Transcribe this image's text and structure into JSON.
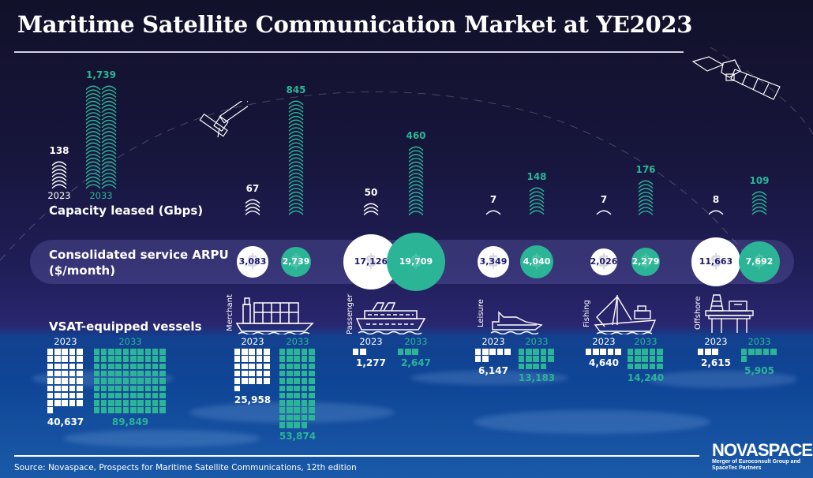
{
  "title": "Maritime Satellite Communication Market at YE2023",
  "source": "Source: Novaspace, Prospects for Maritime Satellite Communications, 12th edition",
  "logo": {
    "name": "NOVASPACE",
    "tagline": "Merger of Euroconsult Group and SpaceTec Partners"
  },
  "colors": {
    "y2023": "#ffffff",
    "y2033": "#2bb596",
    "arpu_text_2023": "#1d1a6b",
    "background_top": "#12112a",
    "ocean": "#12418f"
  },
  "icons": [
    "satellite-icon",
    "satellite-large-icon",
    "signal-arc-icon",
    "dollar-icon",
    "merchant-ship-icon",
    "passenger-ship-icon",
    "leisure-yacht-icon",
    "fishing-boat-icon",
    "offshore-platform-icon"
  ],
  "chart_data": {
    "type": "bar",
    "title": "Maritime Satellite Communication Market at YE2023",
    "years": [
      "2023",
      "2033"
    ],
    "segments": [
      "",
      "Merchant",
      "Passenger",
      "Leisure",
      "Fishing",
      "Offshore"
    ],
    "capacity": {
      "label": "Capacity leased (Gbps)",
      "y2023": [
        138,
        67,
        50,
        7,
        7,
        8
      ],
      "y2033": [
        1739,
        845,
        460,
        148,
        176,
        109
      ]
    },
    "arpu": {
      "label_line1": "Consolidated service ARPU",
      "label_line2": "($/month)",
      "y2023": [
        3083,
        17126,
        3349,
        2026,
        11663
      ],
      "y2033": [
        2739,
        19709,
        4040,
        2279,
        7692
      ]
    },
    "vessels": {
      "label": "VSAT-equipped vessels",
      "y2023": [
        40637,
        25958,
        1277,
        6147,
        4640,
        2615
      ],
      "y2033": [
        89849,
        53874,
        2647,
        13183,
        14240,
        5905
      ]
    }
  }
}
